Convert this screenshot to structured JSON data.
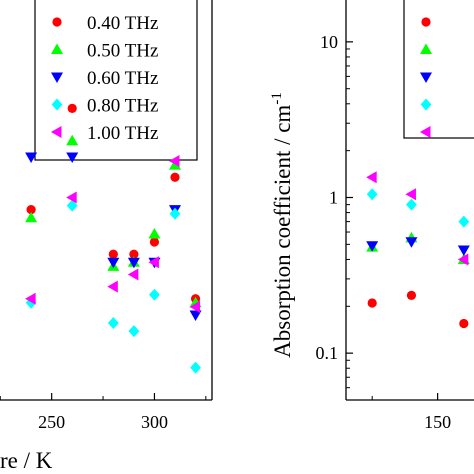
{
  "chart_data": [
    {
      "type": "scatter",
      "title": "",
      "xlabel": "re / K",
      "ylabel": "",
      "xscale": "linear",
      "yscale": "linear",
      "xlim": [
        220,
        328
      ],
      "ylim": [
        0,
        1
      ],
      "grid": false,
      "legend": "top-right",
      "xticks": [
        250,
        300
      ],
      "series": [
        {
          "name": "0.40 THz",
          "marker": "circle",
          "color": "#ff0000",
          "x": [
            240,
            260,
            280,
            290,
            300,
            310,
            320
          ],
          "y": [
            0.47,
            0.72,
            0.36,
            0.36,
            0.39,
            0.55,
            0.25
          ]
        },
        {
          "name": "0.50 THz",
          "marker": "triangle-up",
          "color": "#00ff00",
          "x": [
            240,
            260,
            280,
            290,
            300,
            310,
            320
          ],
          "y": [
            0.45,
            0.64,
            0.33,
            0.34,
            0.41,
            0.58,
            0.24
          ]
        },
        {
          "name": "0.60 THz",
          "marker": "triangle-down",
          "color": "#0000ff",
          "x": [
            240,
            260,
            280,
            290,
            300,
            310,
            320
          ],
          "y": [
            0.6,
            0.6,
            0.34,
            0.34,
            0.34,
            0.47,
            0.21
          ]
        },
        {
          "name": "0.80 THz",
          "marker": "diamond",
          "color": "#00ffff",
          "x": [
            240,
            260,
            280,
            290,
            300,
            310,
            320
          ],
          "y": [
            0.24,
            0.48,
            0.19,
            0.17,
            0.26,
            0.46,
            0.08
          ]
        },
        {
          "name": "1.00 THz",
          "marker": "triangle-left",
          "color": "#ff00ff",
          "x": [
            240,
            260,
            280,
            290,
            300,
            310,
            320
          ],
          "y": [
            0.25,
            0.5,
            0.28,
            0.31,
            0.34,
            0.59,
            0.23
          ]
        }
      ]
    },
    {
      "type": "scatter",
      "title": "",
      "xlabel": "",
      "ylabel": "Absorption coefficient / cm",
      "ylabel_superscript": "-1",
      "xscale": "linear",
      "yscale": "log",
      "xlim": [
        115,
        170
      ],
      "ylim": [
        0.05,
        20
      ],
      "grid": false,
      "legend": "top-right",
      "xticks": [
        150
      ],
      "yticks": [
        0.1,
        1,
        10
      ],
      "yticklabels": [
        "0.1",
        "1",
        "10"
      ],
      "series": [
        {
          "name": "",
          "marker": "circle",
          "color": "#ff0000",
          "x": [
            125,
            140,
            160
          ],
          "y": [
            0.21,
            0.235,
            0.155
          ]
        },
        {
          "name": "",
          "marker": "triangle-up",
          "color": "#00ff00",
          "x": [
            125,
            140,
            160
          ],
          "y": [
            0.48,
            0.55,
            0.4
          ]
        },
        {
          "name": "",
          "marker": "triangle-down",
          "color": "#0000ff",
          "x": [
            125,
            140,
            160
          ],
          "y": [
            0.49,
            0.52,
            0.46
          ]
        },
        {
          "name": "",
          "marker": "diamond",
          "color": "#00ffff",
          "x": [
            125,
            140,
            160
          ],
          "y": [
            1.05,
            0.9,
            0.7
          ]
        },
        {
          "name": "",
          "marker": "triangle-left",
          "color": "#ff00ff",
          "x": [
            125,
            140,
            160
          ],
          "y": [
            1.35,
            1.05,
            0.4
          ]
        }
      ]
    }
  ]
}
